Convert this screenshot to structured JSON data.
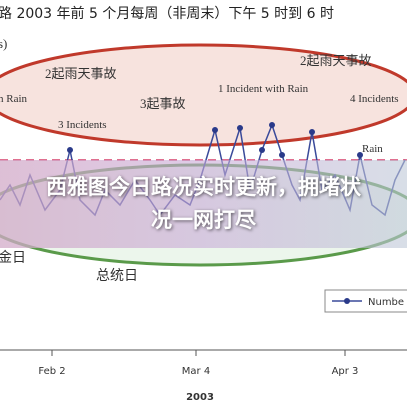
{
  "header": {
    "title": "路 2003 年前 5 个月每周（非周末）下午 5 时到 6 时",
    "subtitle": "s)"
  },
  "annotations": [
    "2起雨天事故",
    "1 Incident with Rain",
    "2起雨天事故",
    "h Rain",
    "3起事故",
    "4 Incidents",
    "3 Incidents",
    "Rain",
    "金日",
    "总统日"
  ],
  "x_axis": {
    "labels": [
      "Feb 2",
      "Mar 4",
      "Apr 3"
    ],
    "year": "2003"
  },
  "legend": {
    "label": "Numbe"
  },
  "banner": {
    "text": "西雅图今日路况实时更新，拥堵状况一网打尽"
  }
}
